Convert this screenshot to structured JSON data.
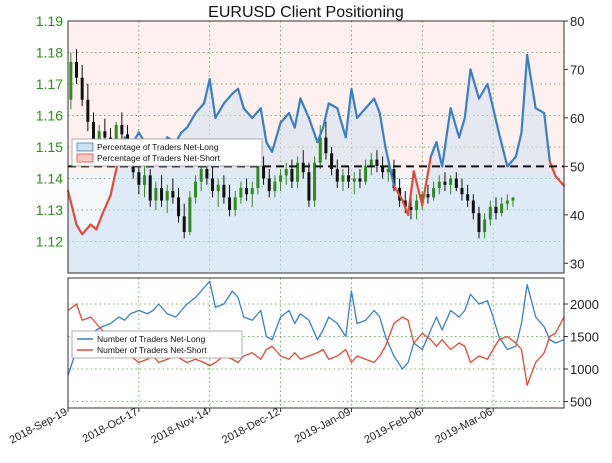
{
  "chart_data": [
    {
      "type": "candlestick",
      "title": "EURUSD Client Positioning",
      "left_axis": {
        "ticks": [
          "1.19",
          "1.18",
          "1.17",
          "1.16",
          "1.15",
          "1.14",
          "1.13",
          "1.12"
        ],
        "ylim": [
          1.11,
          1.19
        ]
      },
      "right_axis": {
        "ticks": [
          "80",
          "70",
          "60",
          "50",
          "40",
          "30"
        ],
        "ylim": [
          28,
          80
        ]
      },
      "reference_line": 50,
      "legend": [
        "Percentage of Traders Net-Long",
        "Percentage of Traders Net-Short"
      ],
      "legend_placement": "left",
      "grid": true,
      "series": [
        {
          "name": "Percentage of Traders Net-Long",
          "x": [
            0,
            3,
            5,
            8,
            10,
            12,
            15,
            18,
            20,
            22,
            25,
            28,
            30,
            32,
            35,
            38,
            40,
            42,
            45,
            48,
            50,
            52,
            55,
            58,
            60,
            62,
            65,
            68,
            70,
            72,
            75,
            78,
            80,
            82,
            85,
            88,
            90,
            92,
            95,
            98,
            100,
            102,
            105,
            108,
            110,
            112,
            115,
            118,
            120,
            122,
            125,
            128,
            130,
            132,
            135,
            138,
            140,
            142,
            145,
            148,
            150,
            152,
            155,
            158,
            160,
            162,
            165,
            168,
            170,
            172,
            175
          ],
          "values": [
            45,
            38,
            36,
            38,
            37,
            40,
            44,
            52,
            56,
            54,
            57,
            54,
            53,
            51,
            56,
            55,
            57,
            58,
            61,
            63,
            68,
            60,
            63,
            65,
            66,
            62,
            60,
            62,
            55,
            53,
            59,
            61,
            58,
            64,
            60,
            55,
            58,
            63,
            62,
            56,
            66,
            60,
            62,
            64,
            61,
            54,
            46,
            43,
            40,
            49,
            42,
            52,
            55,
            50,
            62,
            56,
            60,
            70,
            64,
            67,
            62,
            57,
            50,
            52,
            57,
            73,
            62,
            61,
            51,
            48,
            46
          ]
        }
      ],
      "candles": [
        {
          "x": 1,
          "o": 1.165,
          "h": 1.18,
          "l": 1.162,
          "c": 1.177
        },
        {
          "x": 3,
          "o": 1.177,
          "h": 1.181,
          "l": 1.17,
          "c": 1.172
        },
        {
          "x": 5,
          "o": 1.172,
          "h": 1.176,
          "l": 1.163,
          "c": 1.165
        },
        {
          "x": 7,
          "o": 1.165,
          "h": 1.17,
          "l": 1.155,
          "c": 1.158
        },
        {
          "x": 9,
          "o": 1.158,
          "h": 1.161,
          "l": 1.149,
          "c": 1.152
        },
        {
          "x": 11,
          "o": 1.152,
          "h": 1.157,
          "l": 1.147,
          "c": 1.155
        },
        {
          "x": 13,
          "o": 1.155,
          "h": 1.159,
          "l": 1.152,
          "c": 1.153
        },
        {
          "x": 15,
          "o": 1.153,
          "h": 1.156,
          "l": 1.148,
          "c": 1.15
        },
        {
          "x": 17,
          "o": 1.15,
          "h": 1.158,
          "l": 1.149,
          "c": 1.157
        },
        {
          "x": 19,
          "o": 1.157,
          "h": 1.161,
          "l": 1.152,
          "c": 1.154
        },
        {
          "x": 21,
          "o": 1.154,
          "h": 1.157,
          "l": 1.146,
          "c": 1.148
        },
        {
          "x": 23,
          "o": 1.148,
          "h": 1.152,
          "l": 1.14,
          "c": 1.142
        },
        {
          "x": 25,
          "o": 1.142,
          "h": 1.146,
          "l": 1.135,
          "c": 1.138
        },
        {
          "x": 27,
          "o": 1.138,
          "h": 1.144,
          "l": 1.134,
          "c": 1.141
        },
        {
          "x": 29,
          "o": 1.141,
          "h": 1.143,
          "l": 1.131,
          "c": 1.133
        },
        {
          "x": 31,
          "o": 1.133,
          "h": 1.139,
          "l": 1.13,
          "c": 1.137
        },
        {
          "x": 33,
          "o": 1.137,
          "h": 1.141,
          "l": 1.131,
          "c": 1.133
        },
        {
          "x": 35,
          "o": 1.133,
          "h": 1.138,
          "l": 1.129,
          "c": 1.136
        },
        {
          "x": 37,
          "o": 1.136,
          "h": 1.14,
          "l": 1.132,
          "c": 1.134
        },
        {
          "x": 39,
          "o": 1.134,
          "h": 1.137,
          "l": 1.126,
          "c": 1.128
        },
        {
          "x": 41,
          "o": 1.128,
          "h": 1.132,
          "l": 1.121,
          "c": 1.123
        },
        {
          "x": 43,
          "o": 1.123,
          "h": 1.136,
          "l": 1.122,
          "c": 1.134
        },
        {
          "x": 45,
          "o": 1.134,
          "h": 1.141,
          "l": 1.132,
          "c": 1.139
        },
        {
          "x": 47,
          "o": 1.139,
          "h": 1.146,
          "l": 1.136,
          "c": 1.143
        },
        {
          "x": 49,
          "o": 1.143,
          "h": 1.147,
          "l": 1.138,
          "c": 1.14
        },
        {
          "x": 51,
          "o": 1.14,
          "h": 1.144,
          "l": 1.134,
          "c": 1.136
        },
        {
          "x": 53,
          "o": 1.136,
          "h": 1.14,
          "l": 1.131,
          "c": 1.138
        },
        {
          "x": 55,
          "o": 1.138,
          "h": 1.141,
          "l": 1.132,
          "c": 1.134
        },
        {
          "x": 57,
          "o": 1.134,
          "h": 1.138,
          "l": 1.128,
          "c": 1.13
        },
        {
          "x": 59,
          "o": 1.13,
          "h": 1.136,
          "l": 1.128,
          "c": 1.134
        },
        {
          "x": 61,
          "o": 1.134,
          "h": 1.139,
          "l": 1.132,
          "c": 1.137
        },
        {
          "x": 63,
          "o": 1.137,
          "h": 1.14,
          "l": 1.133,
          "c": 1.135
        },
        {
          "x": 65,
          "o": 1.135,
          "h": 1.139,
          "l": 1.131,
          "c": 1.137
        },
        {
          "x": 67,
          "o": 1.137,
          "h": 1.146,
          "l": 1.135,
          "c": 1.144
        },
        {
          "x": 69,
          "o": 1.144,
          "h": 1.147,
          "l": 1.138,
          "c": 1.14
        },
        {
          "x": 71,
          "o": 1.14,
          "h": 1.143,
          "l": 1.134,
          "c": 1.136
        },
        {
          "x": 73,
          "o": 1.136,
          "h": 1.141,
          "l": 1.134,
          "c": 1.139
        },
        {
          "x": 75,
          "o": 1.139,
          "h": 1.143,
          "l": 1.136,
          "c": 1.141
        },
        {
          "x": 77,
          "o": 1.141,
          "h": 1.145,
          "l": 1.138,
          "c": 1.143
        },
        {
          "x": 79,
          "o": 1.143,
          "h": 1.146,
          "l": 1.137,
          "c": 1.139
        },
        {
          "x": 81,
          "o": 1.139,
          "h": 1.147,
          "l": 1.137,
          "c": 1.145
        },
        {
          "x": 83,
          "o": 1.145,
          "h": 1.149,
          "l": 1.14,
          "c": 1.142
        },
        {
          "x": 85,
          "o": 1.142,
          "h": 1.145,
          "l": 1.131,
          "c": 1.133
        },
        {
          "x": 87,
          "o": 1.133,
          "h": 1.147,
          "l": 1.131,
          "c": 1.145
        },
        {
          "x": 89,
          "o": 1.145,
          "h": 1.157,
          "l": 1.143,
          "c": 1.153
        },
        {
          "x": 91,
          "o": 1.153,
          "h": 1.158,
          "l": 1.146,
          "c": 1.148
        },
        {
          "x": 93,
          "o": 1.148,
          "h": 1.15,
          "l": 1.141,
          "c": 1.143
        },
        {
          "x": 95,
          "o": 1.143,
          "h": 1.146,
          "l": 1.137,
          "c": 1.139
        },
        {
          "x": 97,
          "o": 1.139,
          "h": 1.143,
          "l": 1.136,
          "c": 1.141
        },
        {
          "x": 99,
          "o": 1.141,
          "h": 1.144,
          "l": 1.137,
          "c": 1.139
        },
        {
          "x": 101,
          "o": 1.139,
          "h": 1.142,
          "l": 1.135,
          "c": 1.14
        },
        {
          "x": 103,
          "o": 1.14,
          "h": 1.143,
          "l": 1.137,
          "c": 1.139
        },
        {
          "x": 105,
          "o": 1.139,
          "h": 1.146,
          "l": 1.138,
          "c": 1.144
        },
        {
          "x": 107,
          "o": 1.144,
          "h": 1.148,
          "l": 1.141,
          "c": 1.146
        },
        {
          "x": 109,
          "o": 1.146,
          "h": 1.149,
          "l": 1.142,
          "c": 1.144
        },
        {
          "x": 111,
          "o": 1.144,
          "h": 1.147,
          "l": 1.14,
          "c": 1.142
        },
        {
          "x": 113,
          "o": 1.142,
          "h": 1.146,
          "l": 1.139,
          "c": 1.143
        },
        {
          "x": 115,
          "o": 1.143,
          "h": 1.146,
          "l": 1.136,
          "c": 1.137
        },
        {
          "x": 117,
          "o": 1.137,
          "h": 1.14,
          "l": 1.131,
          "c": 1.133
        },
        {
          "x": 119,
          "o": 1.133,
          "h": 1.136,
          "l": 1.129,
          "c": 1.131
        },
        {
          "x": 121,
          "o": 1.131,
          "h": 1.134,
          "l": 1.127,
          "c": 1.13
        },
        {
          "x": 123,
          "o": 1.13,
          "h": 1.135,
          "l": 1.127,
          "c": 1.133
        },
        {
          "x": 125,
          "o": 1.133,
          "h": 1.136,
          "l": 1.13,
          "c": 1.135
        },
        {
          "x": 127,
          "o": 1.135,
          "h": 1.138,
          "l": 1.132,
          "c": 1.134
        },
        {
          "x": 129,
          "o": 1.134,
          "h": 1.139,
          "l": 1.133,
          "c": 1.137
        },
        {
          "x": 131,
          "o": 1.137,
          "h": 1.141,
          "l": 1.135,
          "c": 1.139
        },
        {
          "x": 133,
          "o": 1.139,
          "h": 1.142,
          "l": 1.136,
          "c": 1.138
        },
        {
          "x": 135,
          "o": 1.138,
          "h": 1.141,
          "l": 1.135,
          "c": 1.14
        },
        {
          "x": 137,
          "o": 1.14,
          "h": 1.142,
          "l": 1.136,
          "c": 1.137
        },
        {
          "x": 139,
          "o": 1.137,
          "h": 1.14,
          "l": 1.133,
          "c": 1.135
        },
        {
          "x": 141,
          "o": 1.135,
          "h": 1.138,
          "l": 1.131,
          "c": 1.133
        },
        {
          "x": 143,
          "o": 1.133,
          "h": 1.135,
          "l": 1.127,
          "c": 1.129
        },
        {
          "x": 145,
          "o": 1.129,
          "h": 1.131,
          "l": 1.121,
          "c": 1.123
        },
        {
          "x": 147,
          "o": 1.123,
          "h": 1.129,
          "l": 1.121,
          "c": 1.127
        },
        {
          "x": 149,
          "o": 1.127,
          "h": 1.133,
          "l": 1.125,
          "c": 1.131
        },
        {
          "x": 151,
          "o": 1.131,
          "h": 1.134,
          "l": 1.127,
          "c": 1.129
        },
        {
          "x": 153,
          "o": 1.129,
          "h": 1.134,
          "l": 1.128,
          "c": 1.132
        },
        {
          "x": 155,
          "o": 1.132,
          "h": 1.135,
          "l": 1.13,
          "c": 1.133
        },
        {
          "x": 157,
          "o": 1.133,
          "h": 1.134,
          "l": 1.131,
          "c": 1.134
        }
      ]
    },
    {
      "type": "line",
      "right_axis": {
        "ticks": [
          "2000",
          "1500",
          "1000",
          "500"
        ],
        "ylim": [
          400,
          2400
        ]
      },
      "legend": [
        "Number of Traders Net-Long",
        "Number of Traders Net-Short"
      ],
      "legend_placement": "left",
      "grid": true,
      "series": [
        {
          "name": "Number of Traders Net-Long",
          "x": [
            0,
            3,
            5,
            8,
            10,
            12,
            15,
            18,
            20,
            22,
            25,
            28,
            30,
            32,
            35,
            38,
            40,
            42,
            45,
            48,
            50,
            52,
            55,
            58,
            60,
            62,
            65,
            68,
            70,
            72,
            75,
            78,
            80,
            82,
            85,
            88,
            90,
            92,
            95,
            98,
            100,
            102,
            105,
            108,
            110,
            112,
            115,
            118,
            120,
            122,
            125,
            128,
            130,
            132,
            135,
            138,
            140,
            142,
            145,
            148,
            150,
            152,
            155,
            158,
            160,
            162,
            165,
            168,
            170,
            172,
            175
          ],
          "values": [
            900,
            1300,
            1450,
            1500,
            1600,
            1650,
            1700,
            1800,
            1750,
            1850,
            1900,
            1850,
            1900,
            2000,
            1850,
            1800,
            1900,
            2000,
            2100,
            2250,
            2350,
            1950,
            2000,
            2200,
            2100,
            1800,
            1750,
            1900,
            1500,
            1450,
            1800,
            1900,
            1700,
            1850,
            1750,
            1450,
            1600,
            1800,
            1700,
            1500,
            2200,
            1700,
            1750,
            1900,
            1800,
            1500,
            1200,
            1000,
            1100,
            1400,
            1300,
            1600,
            1800,
            1600,
            1900,
            1800,
            1900,
            2150,
            2000,
            2050,
            1800,
            1500,
            1300,
            1350,
            1700,
            2300,
            1800,
            1650,
            1450,
            1400,
            1450
          ]
        },
        {
          "name": "Number of Traders Net-Short",
          "x": [
            0,
            3,
            5,
            8,
            10,
            12,
            15,
            18,
            20,
            22,
            25,
            28,
            30,
            32,
            35,
            38,
            40,
            42,
            45,
            48,
            50,
            52,
            55,
            58,
            60,
            62,
            65,
            68,
            70,
            72,
            75,
            78,
            80,
            82,
            85,
            88,
            90,
            92,
            95,
            98,
            100,
            102,
            105,
            108,
            110,
            112,
            115,
            118,
            120,
            122,
            125,
            128,
            130,
            132,
            135,
            138,
            140,
            142,
            145,
            148,
            150,
            152,
            155,
            158,
            160,
            162,
            165,
            168,
            170,
            172,
            175
          ],
          "values": [
            1900,
            2000,
            1750,
            1800,
            1700,
            1600,
            1450,
            1300,
            1250,
            1200,
            1100,
            1150,
            1200,
            1100,
            1150,
            1200,
            1150,
            1100,
            1150,
            1100,
            1050,
            1100,
            1200,
            1150,
            1100,
            1200,
            1250,
            1150,
            1300,
            1350,
            1200,
            1150,
            1250,
            1150,
            1200,
            1250,
            1300,
            1150,
            1200,
            1300,
            1100,
            1200,
            1150,
            1100,
            1200,
            1350,
            1700,
            1800,
            1750,
            1400,
            1550,
            1450,
            1350,
            1450,
            1300,
            1400,
            1350,
            1100,
            1200,
            1150,
            1300,
            1450,
            1500,
            1400,
            1300,
            750,
            1100,
            1250,
            1500,
            1550,
            1800
          ]
        }
      ]
    }
  ],
  "x_axis": {
    "ticks": [
      "2018-Sep-19",
      "2018-Oct-17",
      "2018-Nov-14",
      "2018-Dec-12",
      "2019-Jan-09",
      "2019-Feb-06",
      "2019-Mar-06"
    ]
  },
  "colors": {
    "net_long": "#3a7fc1",
    "net_short": "#e04a3a",
    "candle_up": "#2e8b1e",
    "candle_down": "#111111",
    "axis_left": "#2e8b1e"
  }
}
